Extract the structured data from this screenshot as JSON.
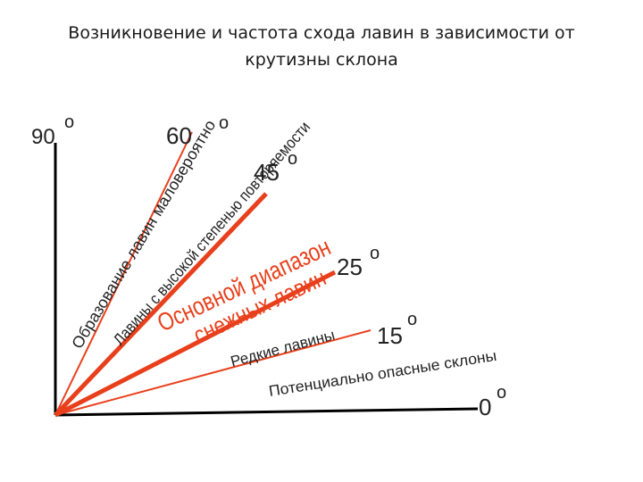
{
  "title_line1": "Возникновение и частота схода лавин в зависимости от",
  "title_line2": "крутизны склона",
  "angles": {
    "a90": "90",
    "a60": "60",
    "a45": "45",
    "a25": "25",
    "a15": "15",
    "a0": "0",
    "deg": "о"
  },
  "zones": {
    "z1": "Образование лавин маловероятно",
    "z2": "Лавины с высокой степенью повторяемости",
    "z3a": "Основной диапазон",
    "z3b": "снежных лавин",
    "z4": "Редкие лавины",
    "z5": "Потенциально опасные склоны"
  },
  "colors": {
    "black": "#000000",
    "red": "#e8401c",
    "zone_red": "#e8401c",
    "text": "#222222"
  }
}
